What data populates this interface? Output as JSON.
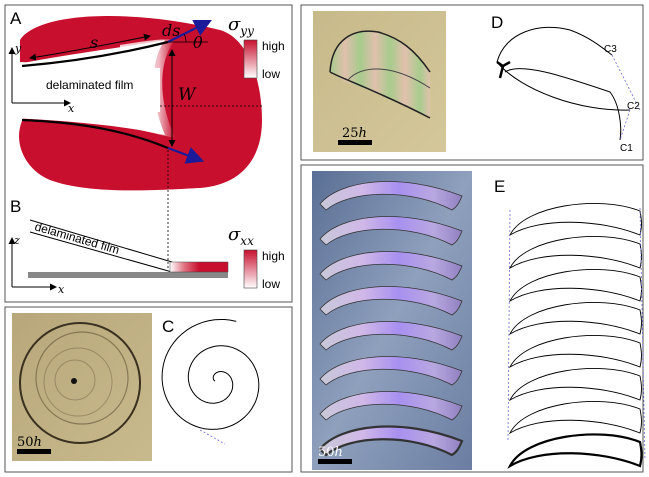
{
  "panelA": {
    "letter": "A",
    "film_label": "delaminated film",
    "s_label": "s",
    "ds_label": "ds",
    "theta_label": "θ",
    "W_label": "W",
    "x_axis": "x",
    "y_axis": "y",
    "stress_label": "σyy",
    "stress_symbol": "σ",
    "stress_sub": "yy",
    "high": "high",
    "low": "low"
  },
  "panelB": {
    "letter": "B",
    "film_label": "delaminated film",
    "x_axis": "x",
    "z_axis": "z",
    "stress_label": "σxx",
    "stress_symbol": "σ",
    "stress_sub": "xx",
    "high": "high",
    "low": "low"
  },
  "panelC": {
    "letter": "C",
    "scale_label": "50h",
    "scale_num": "50",
    "scale_unit": "h"
  },
  "panelD": {
    "letter": "D",
    "scale_label": "25h",
    "scale_num": "25",
    "scale_unit": "h",
    "points": [
      "C1",
      "C2",
      "C3"
    ]
  },
  "panelE": {
    "letter": "E",
    "scale_label": "50h",
    "scale_num": "50",
    "scale_unit": "h"
  },
  "colors": {
    "stress_red": "#c8102e",
    "arrow_blue": "#1a1a9a",
    "dashed_blue": "#6a6ad8"
  }
}
